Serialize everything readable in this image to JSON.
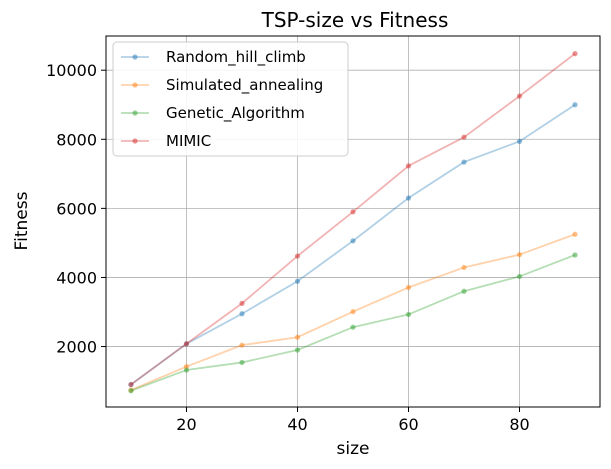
{
  "chart_data": {
    "type": "line",
    "title": "TSP-size vs Fitness",
    "xlabel": "size",
    "ylabel": "Fitness",
    "x": [
      10,
      20,
      30,
      40,
      50,
      60,
      70,
      80,
      90
    ],
    "xlim": [
      5.5,
      94.5
    ],
    "ylim": [
      250,
      10990
    ],
    "xticks": [
      20,
      40,
      60,
      80
    ],
    "yticks": [
      2000,
      4000,
      6000,
      8000,
      10000
    ],
    "grid": true,
    "legend_position": "top-left",
    "series": [
      {
        "name": "Random_hill_climb",
        "color": "#1f77b4",
        "values": [
          900,
          2080,
          2950,
          3890,
          5060,
          6300,
          7340,
          7940,
          9000
        ]
      },
      {
        "name": "Simulated_annealing",
        "color": "#ff7f0e",
        "values": [
          740,
          1420,
          2040,
          2270,
          3010,
          3710,
          4290,
          4660,
          5250
        ]
      },
      {
        "name": "Genetic_Algorithm",
        "color": "#2ca02c",
        "values": [
          720,
          1320,
          1540,
          1900,
          2560,
          2930,
          3600,
          4030,
          4650
        ]
      },
      {
        "name": "MIMIC",
        "color": "#d62728",
        "values": [
          900,
          2080,
          3250,
          4620,
          5900,
          7230,
          8060,
          9250,
          10480
        ]
      }
    ]
  }
}
